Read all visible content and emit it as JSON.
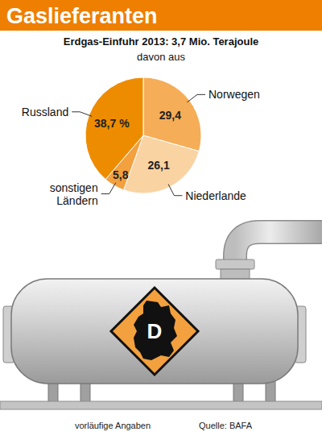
{
  "chart_data": {
    "type": "pie",
    "title": "Gaslieferanten",
    "subtitle": "Erdgas-Einfuhr 2013: 3,7 Mio. Terajoule",
    "annotations": [
      "davon aus",
      "D"
    ],
    "categories": [
      "Norwegen",
      "Niederlande",
      "sonstigen Ländern",
      "Russland"
    ],
    "values": [
      29.4,
      26.1,
      5.8,
      38.7
    ],
    "value_labels": [
      "29,4",
      "26,1",
      "5,8",
      "38,7 %"
    ],
    "colors": [
      "#f5ad57",
      "#fad3a2",
      "#f3a03e",
      "#ee8c00"
    ],
    "data_labels": true,
    "notes": "vorläufige Angaben",
    "source": "Quelle: BAFA"
  }
}
